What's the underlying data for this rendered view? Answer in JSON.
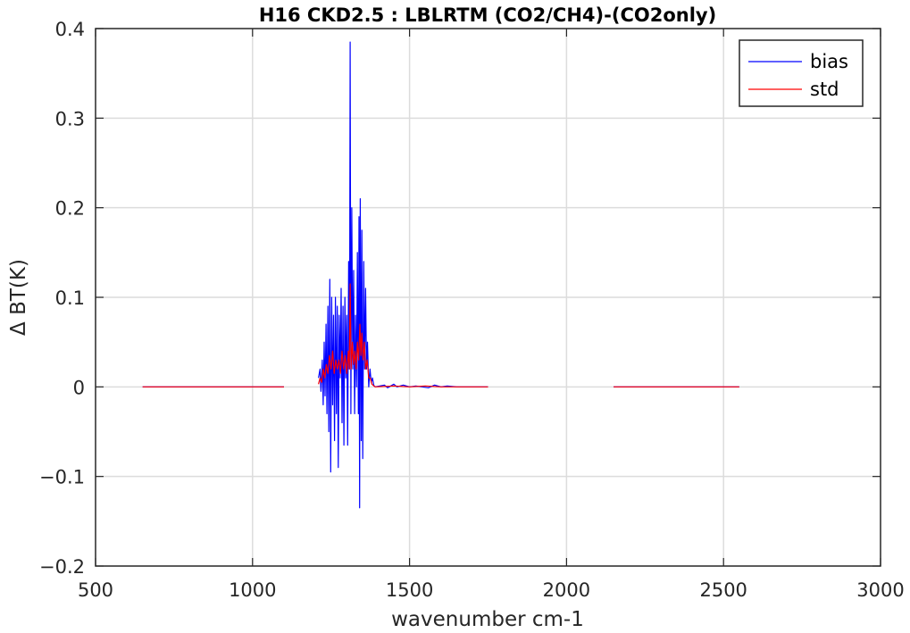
{
  "chart_data": {
    "type": "line",
    "title": "H16 CKD2.5 : LBLRTM (CO2/CH4)-(CO2only)",
    "xlabel": "wavenumber cm-1",
    "ylabel": "Δ BT(K)",
    "xlim": [
      500,
      3000
    ],
    "ylim": [
      -0.2,
      0.4
    ],
    "xticks": [
      500,
      1000,
      1500,
      2000,
      2500,
      3000
    ],
    "xtick_labels": [
      "500",
      "1000",
      "1500",
      "2000",
      "2500",
      "3000"
    ],
    "yticks": [
      -0.2,
      -0.1,
      0,
      0.1,
      0.2,
      0.3,
      0.4
    ],
    "ytick_labels": [
      "−0.2",
      "−0.1",
      "0",
      "0.1",
      "0.2",
      "0.3",
      "0.4"
    ],
    "grid": true,
    "legend_position": "top-right",
    "series": [
      {
        "name": "bias",
        "color": "#0000ff",
        "segments": [
          [
            [
              650,
              0
            ],
            [
              1100,
              0
            ]
          ],
          [
            [
              1210,
              0.01
            ],
            [
              1215,
              0.02
            ],
            [
              1218,
              -0.005
            ],
            [
              1222,
              0.03
            ],
            [
              1225,
              -0.02
            ],
            [
              1228,
              0.05
            ],
            [
              1231,
              -0.01
            ],
            [
              1234,
              0.07
            ],
            [
              1237,
              -0.03
            ],
            [
              1240,
              0.09
            ],
            [
              1243,
              -0.05
            ],
            [
              1246,
              0.12
            ],
            [
              1249,
              -0.095
            ],
            [
              1252,
              0.1
            ],
            [
              1255,
              -0.02
            ],
            [
              1258,
              0.08
            ],
            [
              1261,
              -0.06
            ],
            [
              1264,
              0.1
            ],
            [
              1267,
              -0.03
            ],
            [
              1270,
              0.09
            ],
            [
              1273,
              -0.09
            ],
            [
              1276,
              0.08
            ],
            [
              1279,
              0.01
            ],
            [
              1282,
              0.11
            ],
            [
              1285,
              -0.04
            ],
            [
              1288,
              0.09
            ],
            [
              1291,
              -0.065
            ],
            [
              1294,
              0.1
            ],
            [
              1297,
              0.01
            ],
            [
              1300,
              0.08
            ],
            [
              1303,
              -0.065
            ],
            [
              1306,
              0.14
            ],
            [
              1309,
              0.02
            ],
            [
              1311,
              0.385
            ],
            [
              1313,
              -0.03
            ],
            [
              1316,
              0.2
            ],
            [
              1319,
              0.02
            ],
            [
              1322,
              0.13
            ],
            [
              1325,
              -0.03
            ],
            [
              1328,
              0.08
            ],
            [
              1331,
              0.0
            ],
            [
              1334,
              0.15
            ],
            [
              1337,
              -0.03
            ],
            [
              1339,
              0.19
            ],
            [
              1341,
              -0.135
            ],
            [
              1343,
              0.21
            ],
            [
              1346,
              -0.06
            ],
            [
              1348,
              0.175
            ],
            [
              1351,
              -0.08
            ],
            [
              1354,
              0.14
            ],
            [
              1357,
              0.02
            ],
            [
              1360,
              0.11
            ],
            [
              1363,
              0.02
            ],
            [
              1366,
              0.05
            ],
            [
              1370,
              0.0
            ],
            [
              1374,
              0.02
            ],
            [
              1378,
              0.005
            ],
            [
              1382,
              0.01
            ],
            [
              1386,
              0.002
            ],
            [
              1390,
              0.0
            ]
          ],
          [
            [
              1390,
              0
            ],
            [
              1420,
              0.002
            ],
            [
              1430,
              -0.001
            ],
            [
              1450,
              0.003
            ],
            [
              1460,
              0
            ],
            [
              1480,
              0.002
            ],
            [
              1500,
              0
            ],
            [
              1520,
              0.001
            ],
            [
              1540,
              0
            ],
            [
              1560,
              -0.001
            ],
            [
              1580,
              0.002
            ],
            [
              1600,
              0
            ],
            [
              1620,
              0.001
            ],
            [
              1650,
              0
            ],
            [
              1750,
              0
            ]
          ],
          [
            [
              2150,
              0
            ],
            [
              2550,
              0
            ]
          ]
        ]
      },
      {
        "name": "std",
        "color": "#ff0000",
        "segments": [
          [
            [
              650,
              0
            ],
            [
              1100,
              0
            ]
          ],
          [
            [
              1210,
              0.003
            ],
            [
              1215,
              0.01
            ],
            [
              1220,
              0.005
            ],
            [
              1225,
              0.02
            ],
            [
              1230,
              0.01
            ],
            [
              1235,
              0.025
            ],
            [
              1240,
              0.015
            ],
            [
              1245,
              0.035
            ],
            [
              1250,
              0.02
            ],
            [
              1255,
              0.04
            ],
            [
              1260,
              0.015
            ],
            [
              1265,
              0.03
            ],
            [
              1270,
              0.02
            ],
            [
              1275,
              0.03
            ],
            [
              1280,
              0.015
            ],
            [
              1285,
              0.04
            ],
            [
              1290,
              0.02
            ],
            [
              1295,
              0.035
            ],
            [
              1300,
              0.015
            ],
            [
              1305,
              0.04
            ],
            [
              1308,
              0.02
            ],
            [
              1311,
              0.115
            ],
            [
              1314,
              0.02
            ],
            [
              1318,
              0.05
            ],
            [
              1322,
              0.025
            ],
            [
              1326,
              0.04
            ],
            [
              1330,
              0.02
            ],
            [
              1334,
              0.05
            ],
            [
              1338,
              0.03
            ],
            [
              1342,
              0.07
            ],
            [
              1345,
              0.035
            ],
            [
              1348,
              0.06
            ],
            [
              1352,
              0.03
            ],
            [
              1356,
              0.05
            ],
            [
              1360,
              0.02
            ],
            [
              1365,
              0.03
            ],
            [
              1370,
              0.01
            ],
            [
              1375,
              0.01
            ],
            [
              1380,
              0.003
            ],
            [
              1390,
              0.0
            ]
          ],
          [
            [
              1390,
              0
            ],
            [
              1450,
              0.001
            ],
            [
              1500,
              0
            ],
            [
              1550,
              0.001
            ],
            [
              1600,
              0
            ],
            [
              1750,
              0
            ]
          ],
          [
            [
              2150,
              0
            ],
            [
              2550,
              0
            ]
          ]
        ]
      }
    ]
  }
}
